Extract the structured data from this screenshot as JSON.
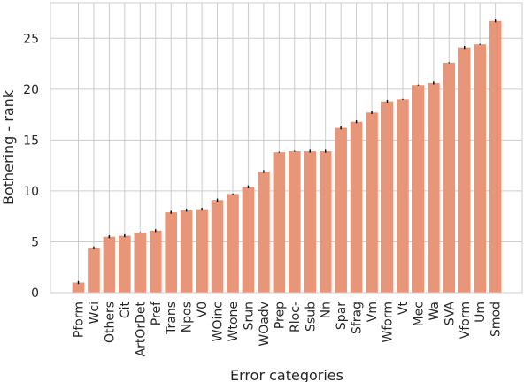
{
  "chart_data": {
    "type": "bar",
    "title": "",
    "xlabel": "Error categories",
    "ylabel": "Bothering - rank",
    "ylim": [
      0,
      28.5
    ],
    "yticks": [
      0,
      5,
      10,
      15,
      20,
      25
    ],
    "grid": true,
    "bar_color": "#e8967a",
    "errorbar_color": "#000000",
    "grid_color": "#cccccc",
    "categories": [
      "Pform",
      "Wci",
      "Others",
      "Cit",
      "ArtOrDet",
      "Pref",
      "Trans",
      "Npos",
      "V0",
      "WOinc",
      "Wtone",
      "Srun",
      "WOadv",
      "Prep",
      "Rloc-",
      "Ssub",
      "Nn",
      "Spar",
      "Sfrag",
      "Vm",
      "Wform",
      "Vt",
      "Mec",
      "Wa",
      "SVA",
      "Vform",
      "Um",
      "Smod"
    ],
    "values": [
      1.0,
      4.4,
      5.5,
      5.6,
      5.9,
      6.1,
      7.9,
      8.1,
      8.2,
      9.1,
      9.7,
      10.4,
      11.9,
      13.8,
      13.9,
      13.9,
      13.9,
      16.2,
      16.8,
      17.7,
      18.8,
      19.0,
      20.4,
      20.6,
      22.6,
      24.1,
      24.4,
      26.7
    ],
    "errors": [
      0.1,
      0.1,
      0.1,
      0.1,
      0.0,
      0.1,
      0.1,
      0.1,
      0.1,
      0.1,
      0.0,
      0.1,
      0.1,
      0.0,
      0.0,
      0.1,
      0.1,
      0.1,
      0.1,
      0.1,
      0.1,
      0.0,
      0.0,
      0.1,
      0.0,
      0.1,
      0.0,
      0.1
    ]
  }
}
